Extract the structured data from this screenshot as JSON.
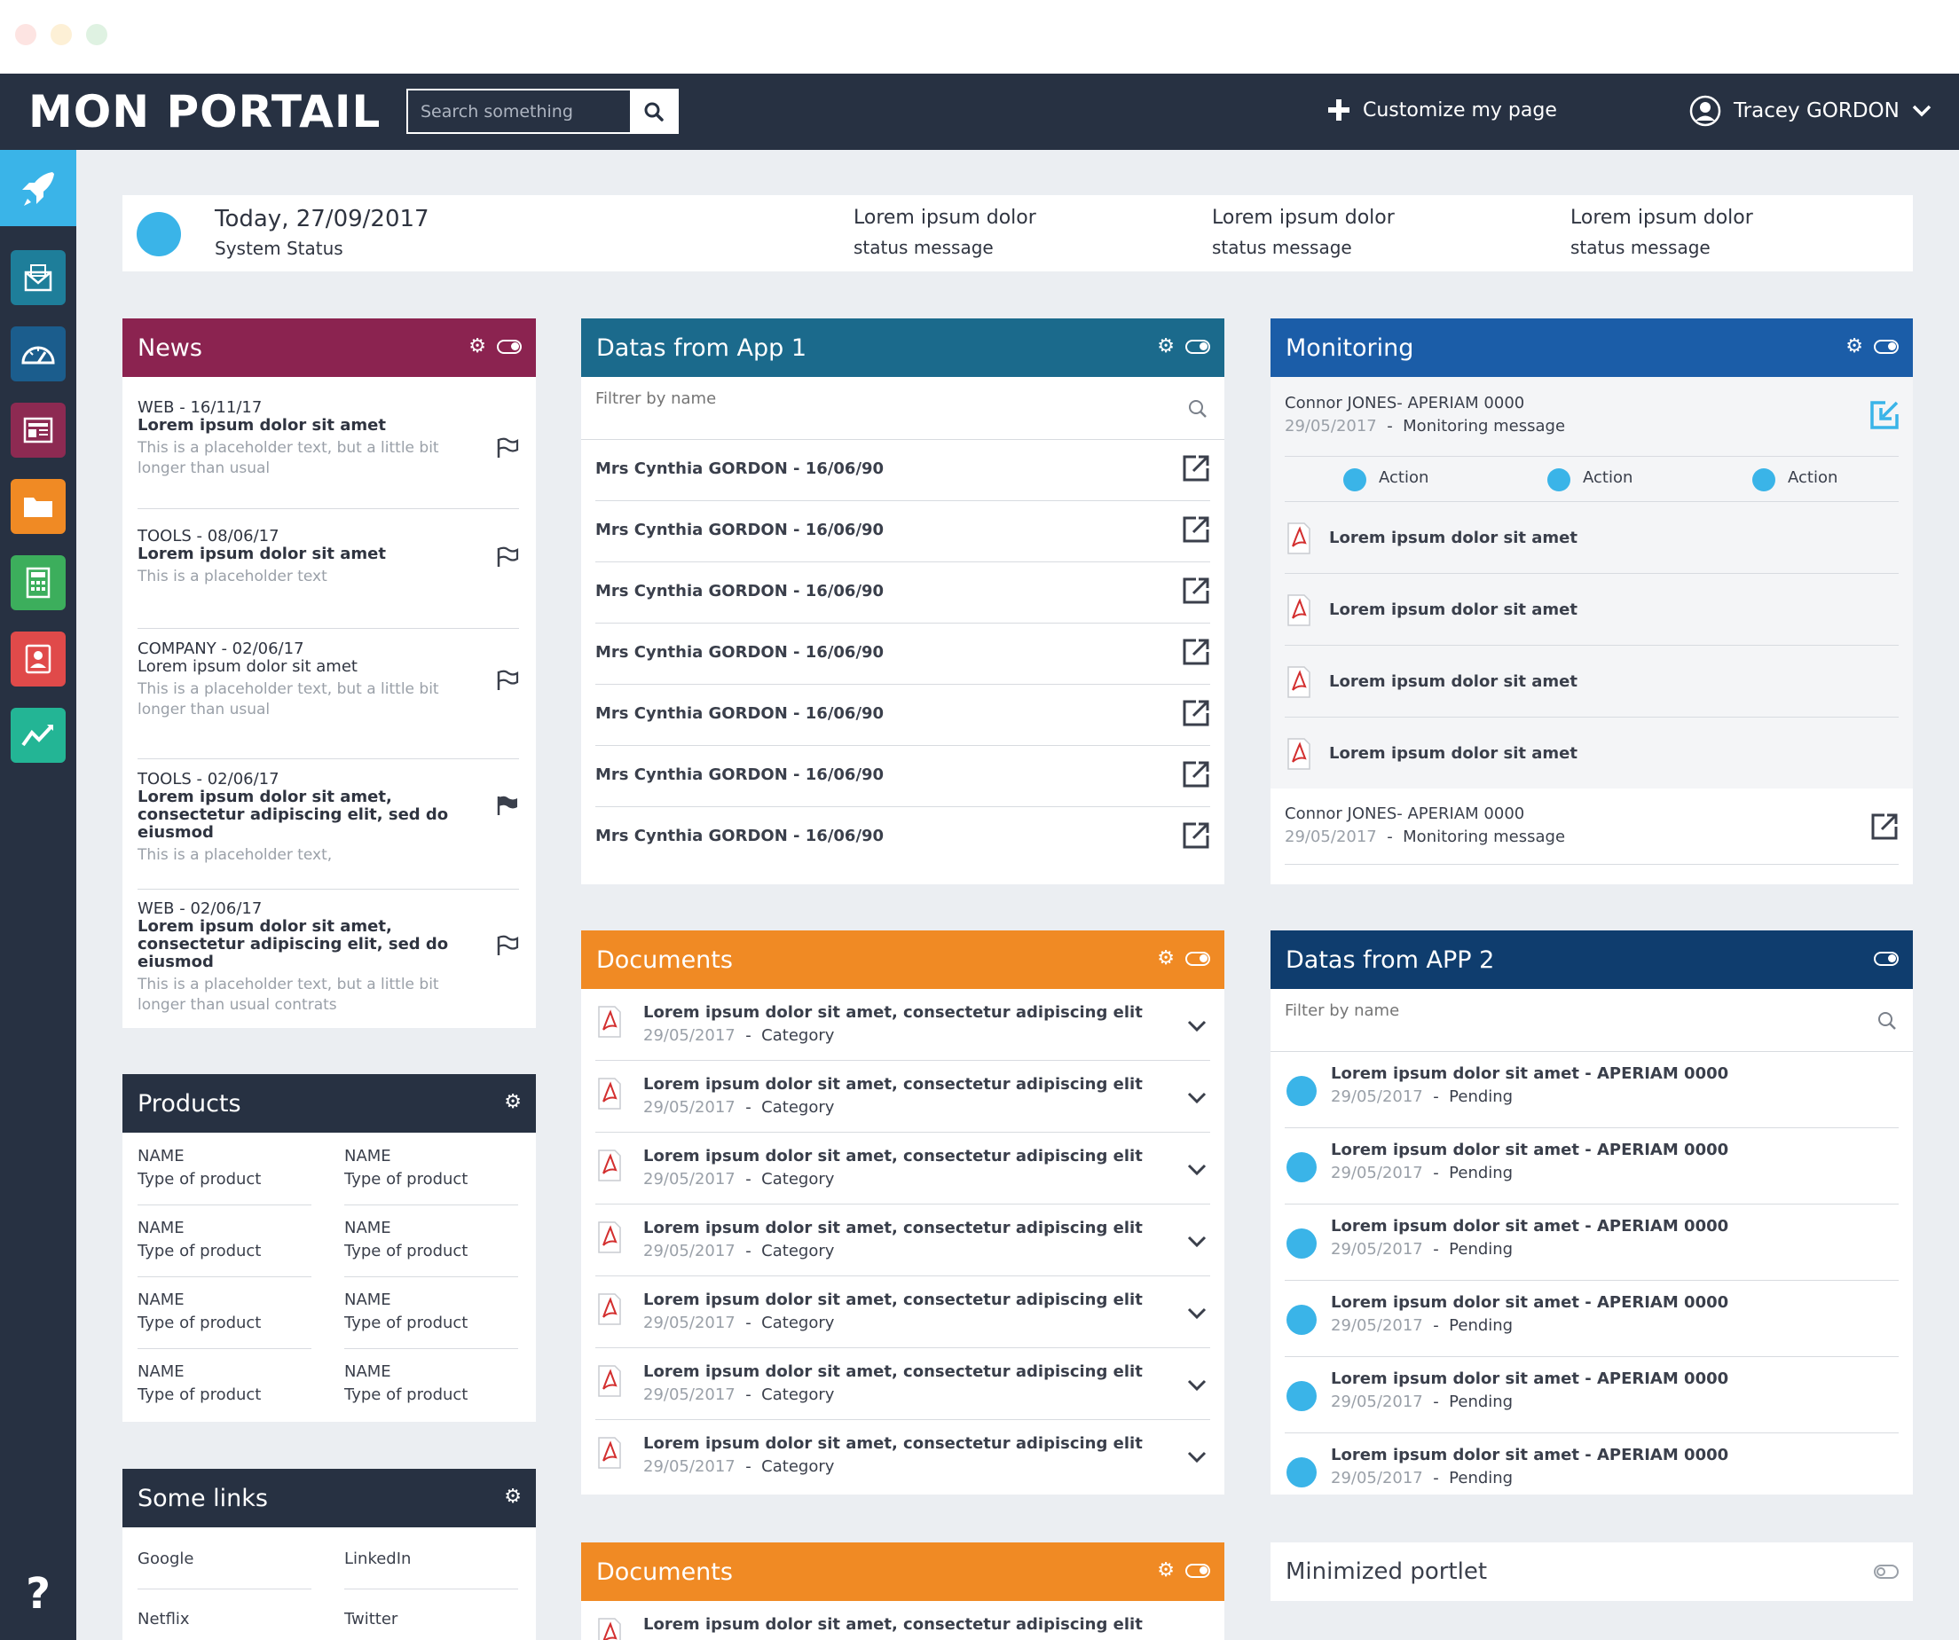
{
  "window_controls": {
    "close_color": "#ff6159",
    "minimize_color": "#ffbd2e",
    "zoom_color": "#28c941"
  },
  "header": {
    "logo": "MON PORTAIL",
    "search_placeholder": "Search something",
    "customize_label": "Customize my page",
    "user_name": "Tracey GORDON"
  },
  "sidebar": {
    "items": [
      {
        "icon": "rocket-icon",
        "color": "#3ab4e8"
      },
      {
        "icon": "mail-icon",
        "color": "#1e7e9a"
      },
      {
        "icon": "dashboard-icon",
        "color": "#1b5d8d"
      },
      {
        "icon": "newspaper-icon",
        "color": "#8d2a52"
      },
      {
        "icon": "folder-icon",
        "color": "#f08a24"
      },
      {
        "icon": "calculator-icon",
        "color": "#3cae5c"
      },
      {
        "icon": "contact-icon",
        "color": "#e04a4a"
      },
      {
        "icon": "chart-icon",
        "color": "#23b595"
      }
    ],
    "help_label": "?"
  },
  "status": {
    "date": "Today, 27/09/2017",
    "subtitle": "System Status",
    "messages": [
      {
        "title": "Lorem ipsum dolor",
        "text": "status message"
      },
      {
        "title": "Lorem ipsum dolor",
        "text": "status message"
      },
      {
        "title": "Lorem ipsum dolor",
        "text": "status message"
      }
    ]
  },
  "news": {
    "title": "News",
    "color": "#8b2350",
    "items": [
      {
        "category": "WEB - 16/11/17",
        "title": "Lorem ipsum dolor sit amet",
        "desc": "This is a placeholder text, but a little bit longer than usual",
        "flagged": false
      },
      {
        "category": "TOOLS - 08/06/17",
        "title": "Lorem ipsum dolor sit amet",
        "desc": "This is a placeholder text",
        "flagged": false
      },
      {
        "category": "COMPANY - 02/06/17",
        "title": "Lorem ipsum dolor sit amet",
        "desc": "This is a placeholder text, but a little bit longer than usual",
        "flagged": false
      },
      {
        "category": "TOOLS - 02/06/17",
        "title": "Lorem ipsum dolor sit amet, consectetur adipiscing elit, sed do eiusmod",
        "desc": "This is a placeholder text,",
        "flagged": true
      },
      {
        "category": "WEB - 02/06/17",
        "title": "Lorem ipsum dolor sit amet, consectetur adipiscing elit, sed do eiusmod",
        "desc": "This is a placeholder text, but a little bit longer than usual contrats",
        "flagged": false
      }
    ]
  },
  "products": {
    "title": "Products",
    "color": "#273142",
    "items": [
      {
        "name": "NAME",
        "type": "Type of product"
      },
      {
        "name": "NAME",
        "type": "Type of product"
      },
      {
        "name": "NAME",
        "type": "Type of product"
      },
      {
        "name": "NAME",
        "type": "Type of product"
      },
      {
        "name": "NAME",
        "type": "Type of product"
      },
      {
        "name": "NAME",
        "type": "Type of product"
      },
      {
        "name": "NAME",
        "type": "Type of product"
      },
      {
        "name": "NAME",
        "type": "Type of product"
      }
    ]
  },
  "links": {
    "title": "Some links",
    "color": "#273142",
    "items": [
      "Google",
      "LinkedIn",
      "Netflix",
      "Twitter"
    ]
  },
  "app1": {
    "title": "Datas from App 1",
    "color": "#1b6a8c",
    "filter_placeholder": "Filtrer by name",
    "rows": [
      "Mrs Cynthia GORDON - 16/06/90",
      "Mrs Cynthia GORDON - 16/06/90",
      "Mrs Cynthia GORDON - 16/06/90",
      "Mrs Cynthia GORDON - 16/06/90",
      "Mrs Cynthia GORDON - 16/06/90",
      "Mrs Cynthia GORDON - 16/06/90",
      "Mrs Cynthia GORDON - 16/06/90"
    ]
  },
  "documents": {
    "title": "Documents",
    "color": "#f08a24",
    "rows": [
      {
        "title": "Lorem ipsum dolor sit amet, consectetur adipiscing elit",
        "date": "29/05/2017",
        "sep": "-",
        "category": "Category"
      },
      {
        "title": "Lorem ipsum dolor sit amet, consectetur adipiscing elit",
        "date": "29/05/2017",
        "sep": "-",
        "category": "Category"
      },
      {
        "title": "Lorem ipsum dolor sit amet, consectetur adipiscing elit",
        "date": "29/05/2017",
        "sep": "-",
        "category": "Category"
      },
      {
        "title": "Lorem ipsum dolor sit amet, consectetur adipiscing elit",
        "date": "29/05/2017",
        "sep": "-",
        "category": "Category"
      },
      {
        "title": "Lorem ipsum dolor sit amet, consectetur adipiscing elit",
        "date": "29/05/2017",
        "sep": "-",
        "category": "Category"
      },
      {
        "title": "Lorem ipsum dolor sit amet, consectetur adipiscing elit",
        "date": "29/05/2017",
        "sep": "-",
        "category": "Category"
      },
      {
        "title": "Lorem ipsum dolor sit amet, consectetur adipiscing elit",
        "date": "29/05/2017",
        "sep": "-",
        "category": "Category"
      }
    ]
  },
  "documents2": {
    "title": "Documents",
    "rows": [
      {
        "title": "Lorem ipsum dolor sit amet, consectetur adipiscing elit"
      }
    ]
  },
  "monitoring": {
    "title": "Monitoring",
    "color": "#1b5da8",
    "top": {
      "name": "Connor JONES- APERIAM 0000",
      "date": "29/05/2017",
      "sep": "-",
      "message": "Monitoring message"
    },
    "actions": [
      "Action",
      "Action",
      "Action"
    ],
    "files": [
      "Lorem ipsum dolor sit amet",
      "Lorem ipsum dolor sit amet",
      "Lorem ipsum dolor sit amet",
      "Lorem ipsum dolor sit amet"
    ],
    "bottom": {
      "name": "Connor JONES- APERIAM 0000",
      "date": "29/05/2017",
      "sep": "-",
      "message": "Monitoring message"
    }
  },
  "app2": {
    "title": "Datas from APP 2",
    "color": "#0f3d6e",
    "filter_placeholder": "Filter by name",
    "rows": [
      {
        "title": "Lorem ipsum dolor sit amet - APERIAM 0000",
        "date": "29/05/2017",
        "sep": "-",
        "status": "Pending"
      },
      {
        "title": "Lorem ipsum dolor sit amet - APERIAM 0000",
        "date": "29/05/2017",
        "sep": "-",
        "status": "Pending"
      },
      {
        "title": "Lorem ipsum dolor sit amet - APERIAM 0000",
        "date": "29/05/2017",
        "sep": "-",
        "status": "Pending"
      },
      {
        "title": "Lorem ipsum dolor sit amet - APERIAM 0000",
        "date": "29/05/2017",
        "sep": "-",
        "status": "Pending"
      },
      {
        "title": "Lorem ipsum dolor sit amet - APERIAM 0000",
        "date": "29/05/2017",
        "sep": "-",
        "status": "Pending"
      },
      {
        "title": "Lorem ipsum dolor sit amet - APERIAM 0000",
        "date": "29/05/2017",
        "sep": "-",
        "status": "Pending"
      }
    ]
  },
  "minimized": {
    "title": "Minimized portlet"
  }
}
